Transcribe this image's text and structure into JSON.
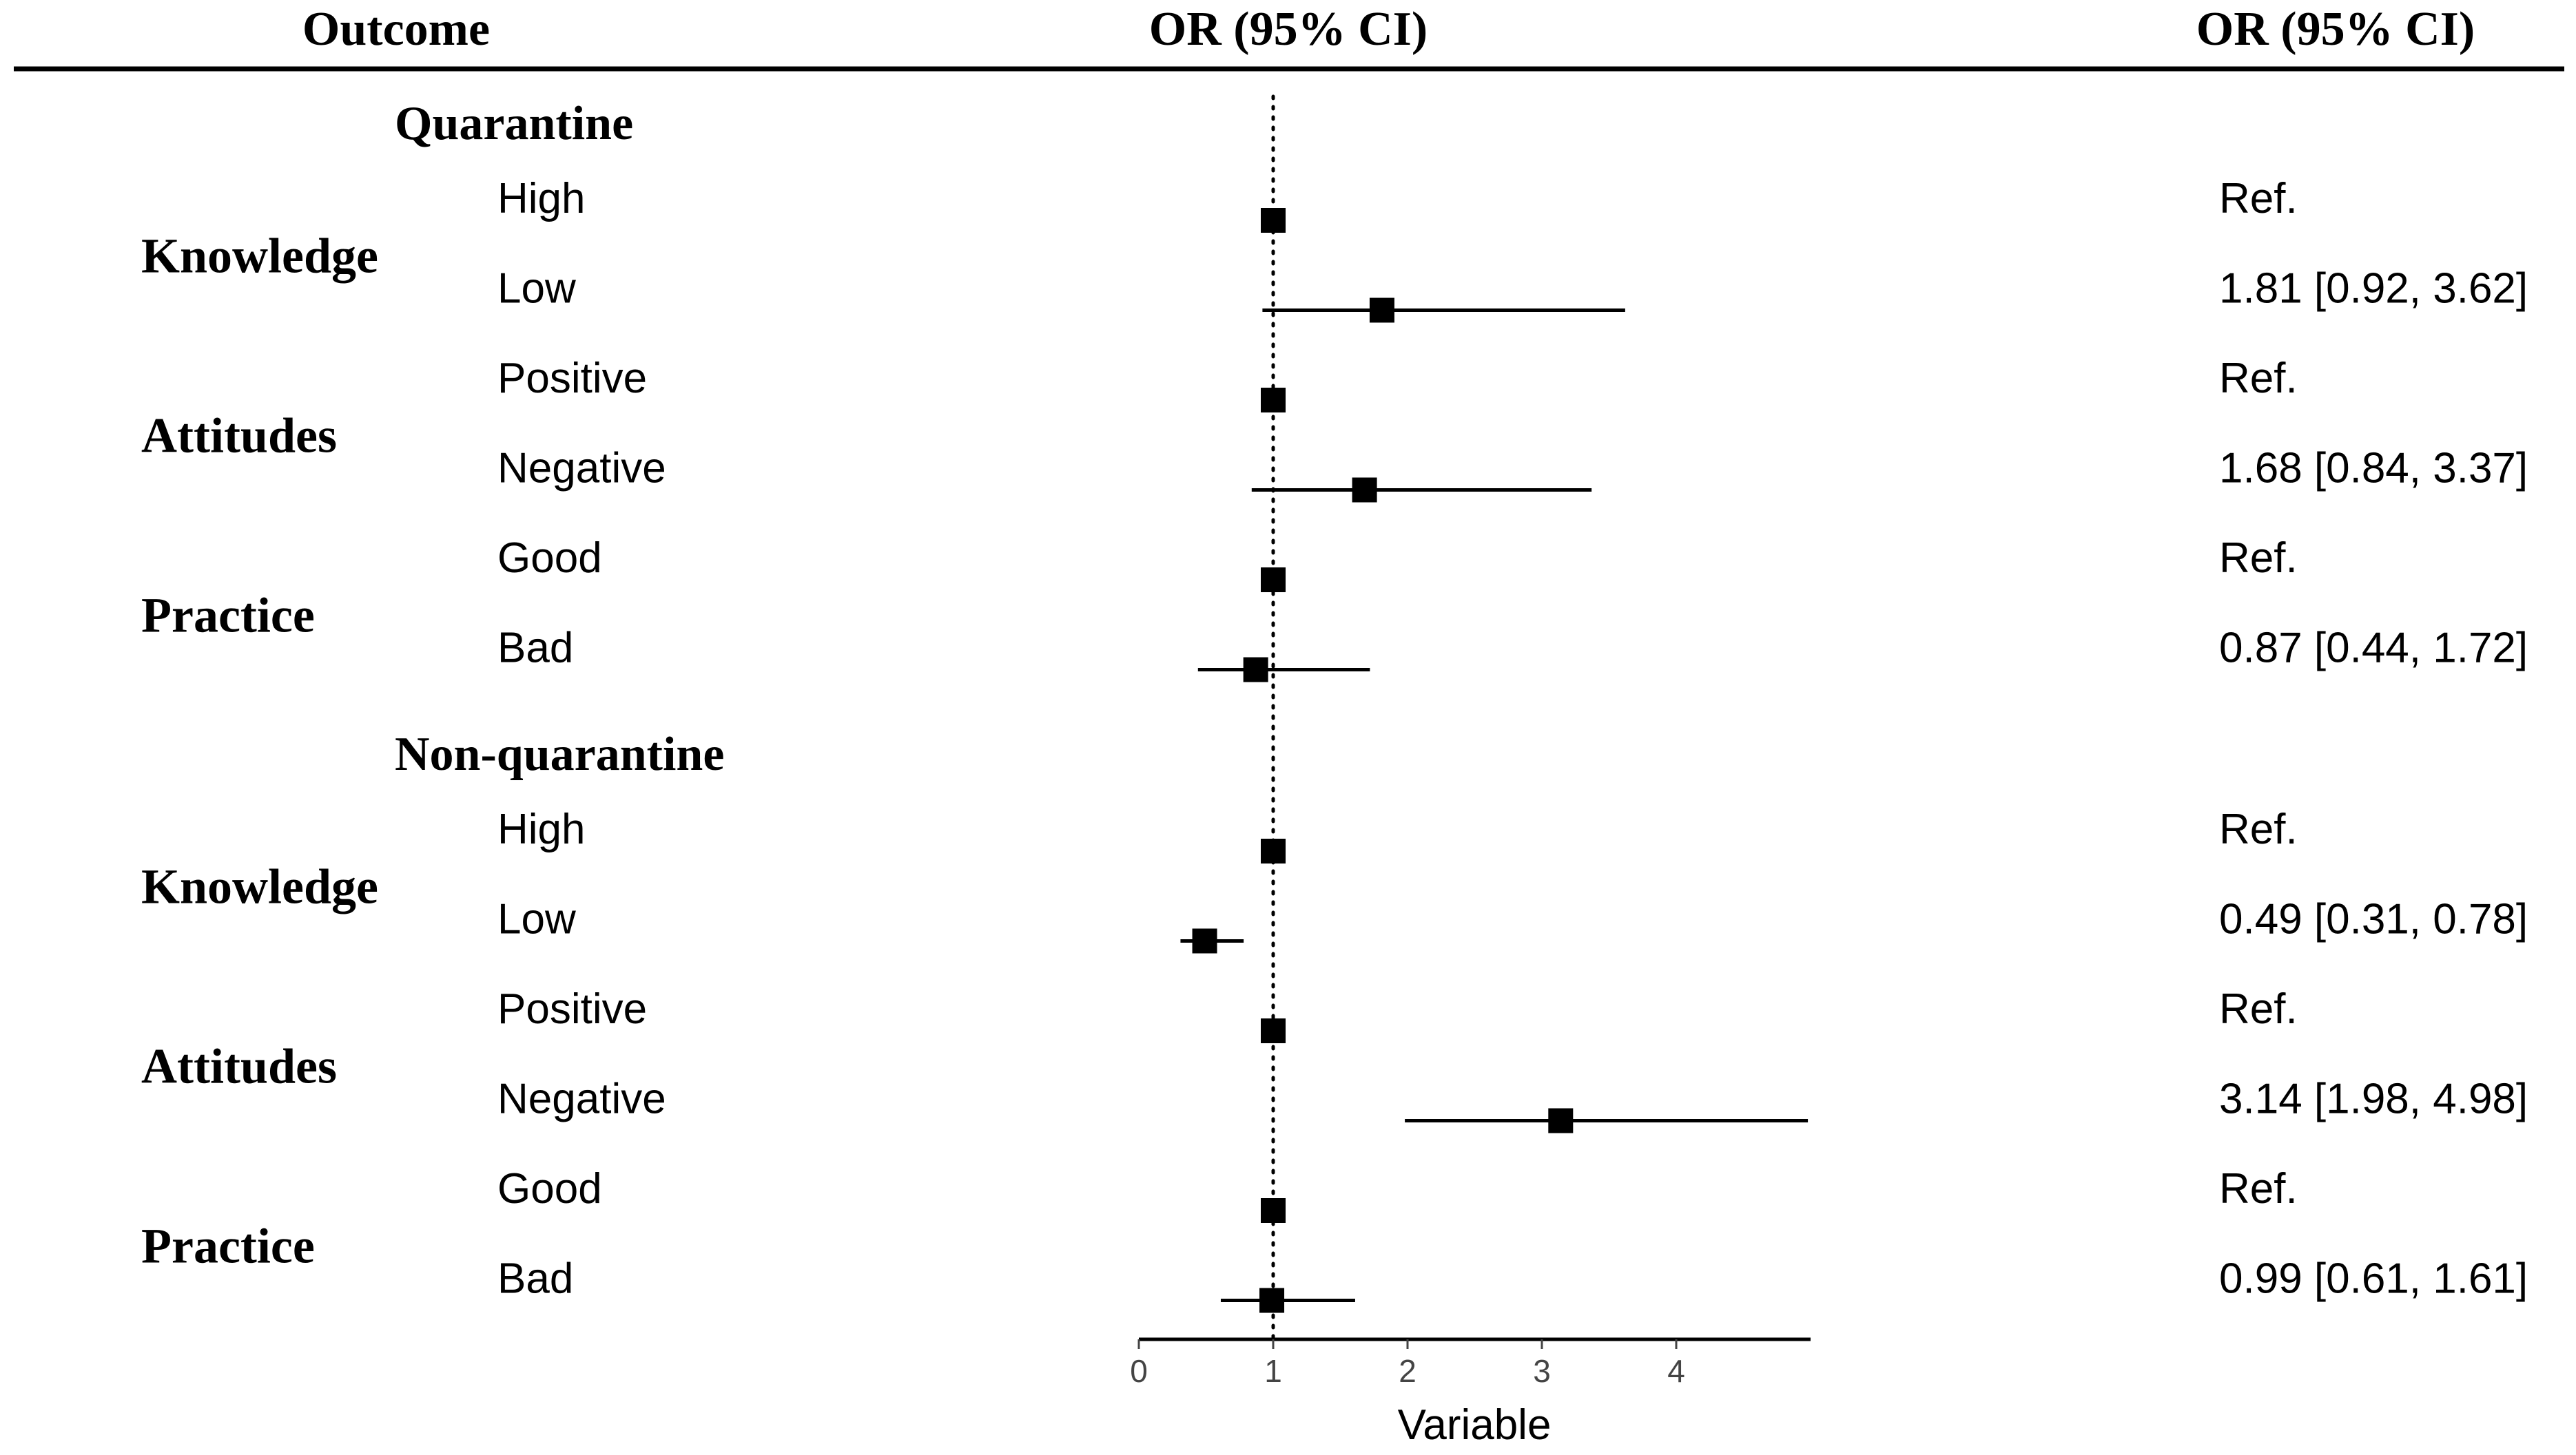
{
  "chart_data": {
    "type": "forest",
    "header": {
      "outcome": "Outcome",
      "or_plot": "OR (95% CI)",
      "or_text": "OR (95% CI)"
    },
    "xlabel": "Variable",
    "xlim": [
      0,
      5
    ],
    "xticks": [
      0,
      1,
      2,
      3,
      4
    ],
    "reference_line": 1,
    "sections": [
      {
        "name": "Quarantine",
        "groups": [
          {
            "name": "Knowledge",
            "rows": [
              {
                "level": "High",
                "or": 1,
                "lower": null,
                "upper": null,
                "text": "Ref."
              },
              {
                "level": "Low",
                "or": 1.81,
                "lower": 0.92,
                "upper": 3.62,
                "text": "1.81 [0.92,  3.62]"
              }
            ]
          },
          {
            "name": "Attitudes",
            "rows": [
              {
                "level": "Positive",
                "or": 1,
                "lower": null,
                "upper": null,
                "text": "Ref."
              },
              {
                "level": "Negative",
                "or": 1.68,
                "lower": 0.84,
                "upper": 3.37,
                "text": "1.68 [0.84,  3.37]"
              }
            ]
          },
          {
            "name": "Practice",
            "rows": [
              {
                "level": "Good",
                "or": 1,
                "lower": null,
                "upper": null,
                "text": "Ref."
              },
              {
                "level": "Bad",
                "or": 0.87,
                "lower": 0.44,
                "upper": 1.72,
                "text": "0.87 [0.44,  1.72]"
              }
            ]
          }
        ]
      },
      {
        "name": "Non-quarantine",
        "groups": [
          {
            "name": "Knowledge",
            "rows": [
              {
                "level": "High",
                "or": 1,
                "lower": null,
                "upper": null,
                "text": "Ref."
              },
              {
                "level": "Low",
                "or": 0.49,
                "lower": 0.31,
                "upper": 0.78,
                "text": "0.49 [0.31,  0.78]"
              }
            ]
          },
          {
            "name": "Attitudes",
            "rows": [
              {
                "level": "Positive",
                "or": 1,
                "lower": null,
                "upper": null,
                "text": "Ref."
              },
              {
                "level": "Negative",
                "or": 3.14,
                "lower": 1.98,
                "upper": 4.98,
                "text": "3.14 [1.98,  4.98]"
              }
            ]
          },
          {
            "name": "Practice",
            "rows": [
              {
                "level": "Good",
                "or": 1,
                "lower": null,
                "upper": null,
                "text": "Ref."
              },
              {
                "level": "Bad",
                "or": 0.99,
                "lower": 0.61,
                "upper": 1.61,
                "text": "0.99 [0.61,  1.61]"
              }
            ]
          }
        ]
      }
    ]
  }
}
